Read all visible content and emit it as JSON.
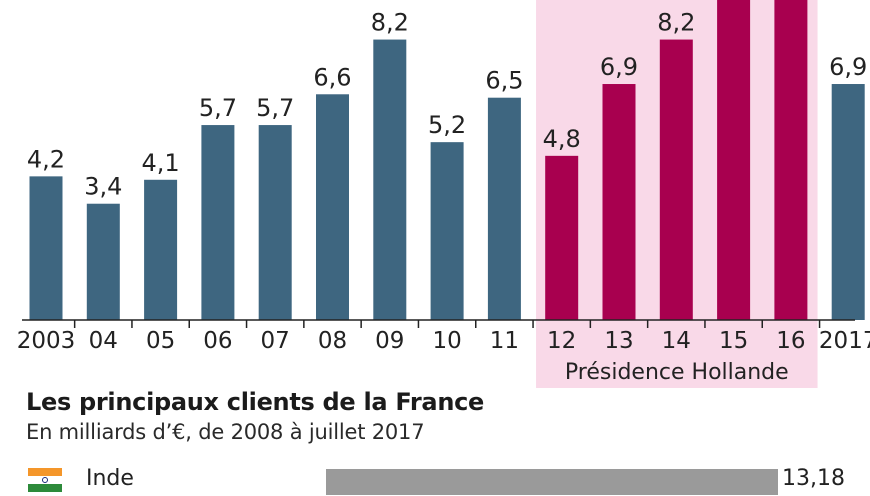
{
  "chart_data": {
    "type": "bar",
    "categories": [
      "2003",
      "04",
      "05",
      "06",
      "07",
      "08",
      "09",
      "10",
      "11",
      "12",
      "13",
      "14",
      "15",
      "16",
      "2017"
    ],
    "values": [
      4.2,
      3.4,
      4.1,
      5.7,
      5.7,
      6.6,
      8.2,
      5.2,
      6.5,
      4.8,
      6.9,
      8.2,
      null,
      null,
      6.9
    ],
    "highlight": {
      "from_index": 9,
      "to_index": 13,
      "label": "Présidence Hollande"
    },
    "value_labels": [
      "4,2",
      "3,4",
      "4,1",
      "5,7",
      "5,7",
      "6,6",
      "8,2",
      "5,2",
      "6,5",
      "4,8",
      "6,9",
      "8,2",
      "",
      "",
      "6,9"
    ],
    "colors": {
      "default": "#3e6680",
      "highlight": "#a8004f",
      "band": "#f9d9e8"
    },
    "ylim": [
      0,
      8.5
    ],
    "grid": false
  },
  "section": {
    "title": "Les principaux clients de la France",
    "subtitle": "En milliards d’€, de 2008 à juillet 2017"
  },
  "clients": [
    {
      "name": "Inde",
      "value": 13.18,
      "value_label": "13,18",
      "flag_icon": "india-flag-icon",
      "color": "#9a9a9a"
    }
  ]
}
